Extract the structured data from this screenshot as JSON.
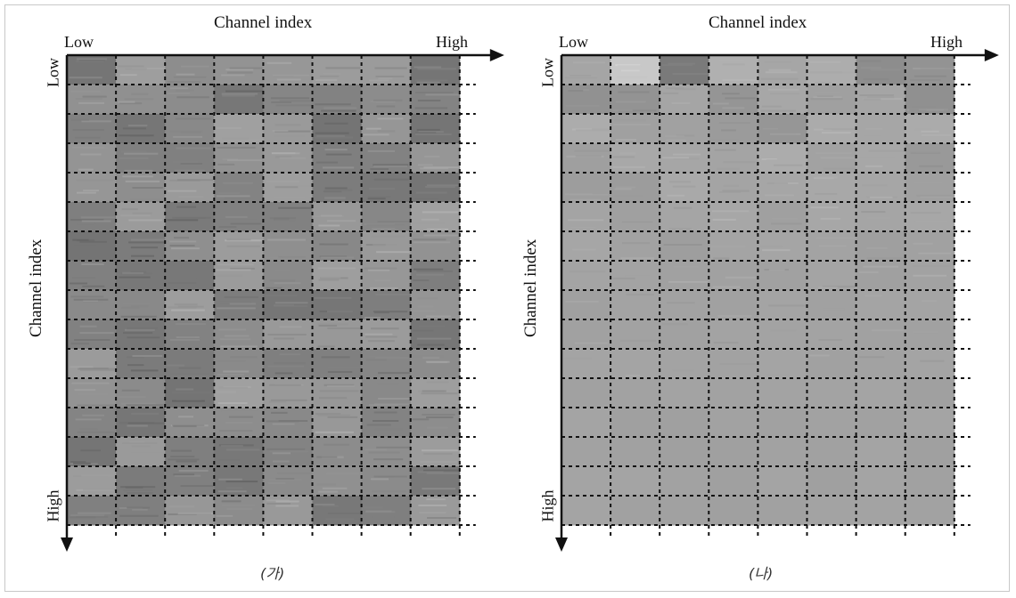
{
  "panels": [
    {
      "caption": "(가)",
      "x_axis": {
        "title": "Channel index",
        "low": "Low",
        "high": "High"
      },
      "y_axis": {
        "title": "Channel index",
        "low": "Low",
        "high": "High"
      },
      "grid": {
        "columns": 8,
        "rows": 16
      },
      "style": "textured"
    },
    {
      "caption": "(나)",
      "x_axis": {
        "title": "Channel index",
        "low": "Low",
        "high": "High"
      },
      "y_axis": {
        "title": "Channel index",
        "low": "Low",
        "high": "High"
      },
      "grid": {
        "columns": 8,
        "rows": 16
      },
      "style": "smooth"
    }
  ],
  "colors": {
    "grid_line": "#111111",
    "panel_a_base": "#8a8a8a",
    "panel_b_base": "#a2a2a2"
  }
}
